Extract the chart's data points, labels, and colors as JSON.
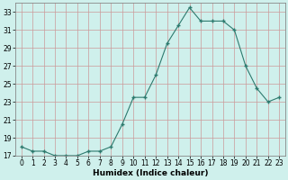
{
  "x": [
    0,
    1,
    2,
    3,
    4,
    5,
    6,
    7,
    8,
    9,
    10,
    11,
    12,
    13,
    14,
    15,
    16,
    17,
    18,
    19,
    20,
    21,
    22,
    23
  ],
  "y": [
    18.0,
    17.5,
    17.5,
    17.0,
    17.0,
    17.0,
    17.5,
    17.5,
    18.0,
    20.5,
    23.5,
    23.5,
    26.0,
    29.5,
    31.5,
    33.5,
    32.0,
    32.0,
    32.0,
    31.0,
    27.0,
    24.5,
    23.0,
    23.5
  ],
  "xlabel": "Humidex (Indice chaleur)",
  "ylim": [
    17,
    34
  ],
  "xlim": [
    -0.5,
    23.5
  ],
  "yticks": [
    17,
    19,
    21,
    23,
    25,
    27,
    29,
    31,
    33
  ],
  "xticks": [
    0,
    1,
    2,
    3,
    4,
    5,
    6,
    7,
    8,
    9,
    10,
    11,
    12,
    13,
    14,
    15,
    16,
    17,
    18,
    19,
    20,
    21,
    22,
    23
  ],
  "line_color": "#2d7a6e",
  "marker": "+",
  "marker_size": 3.5,
  "bg_color": "#cff0ec",
  "grid_color": "#cc9999",
  "tick_label_fontsize": 5.5,
  "xlabel_fontsize": 6.5,
  "linewidth": 0.8
}
